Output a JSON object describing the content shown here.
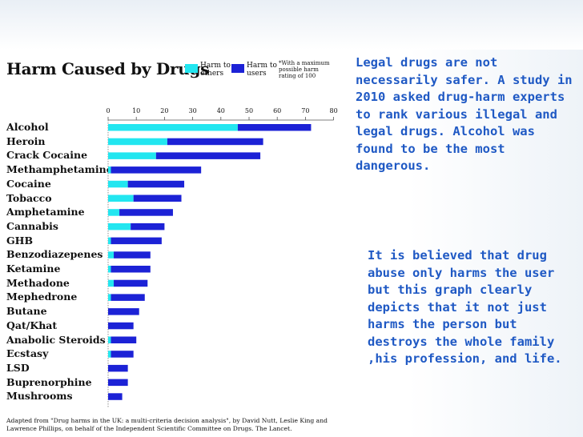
{
  "slide": {
    "text_top": "Legal drugs are not necessarily safer. A study in 2010 asked drug-harm experts to rank various illegal and legal drugs. Alcohol was found to be the most dangerous.",
    "text_bottom": "It is believed that drug abuse only harms the user but this graph clearly depicts that it not just harms the person but destroys the whole family ,his profession, and life.",
    "text_color": "#1f59c4"
  },
  "chart_data": {
    "type": "bar",
    "orientation": "horizontal",
    "stacked": true,
    "title": "Harm Caused by Drugs",
    "note": "*With a maximum possible harm rating of 100",
    "source": "Adapted from \"Drug harms in the UK: a multi-criteria decision analysis\", by David Nutt, Leslie King and Lawrence Phillips, on behalf of the Independent Scientific Committee on Drugs. The Lancet.",
    "xlim": [
      0,
      80
    ],
    "xticks": [
      0,
      10,
      20,
      30,
      40,
      50,
      60,
      70,
      80
    ],
    "legend_position": "top",
    "categories": [
      "Alcohol",
      "Heroin",
      "Crack Cocaine",
      "Methamphetamine",
      "Cocaine",
      "Tobacco",
      "Amphetamine",
      "Cannabis",
      "GHB",
      "Benzodiazepenes",
      "Ketamine",
      "Methadone",
      "Mephedrone",
      "Butane",
      "Qat/Khat",
      "Anabolic Steroids",
      "Ecstasy",
      "LSD",
      "Buprenorphine",
      "Mushrooms"
    ],
    "series": [
      {
        "name": "Harm to others",
        "color": "#22e6f0",
        "values": [
          46,
          21,
          17,
          1,
          7,
          9,
          4,
          8,
          1,
          2,
          1,
          2,
          1,
          0,
          0,
          1,
          1,
          0,
          0,
          0
        ]
      },
      {
        "name": "Harm to users",
        "color": "#1c22d6",
        "values": [
          26,
          34,
          37,
          32,
          20,
          17,
          19,
          12,
          18,
          13,
          14,
          12,
          12,
          11,
          9,
          9,
          8,
          7,
          7,
          5
        ]
      }
    ]
  }
}
